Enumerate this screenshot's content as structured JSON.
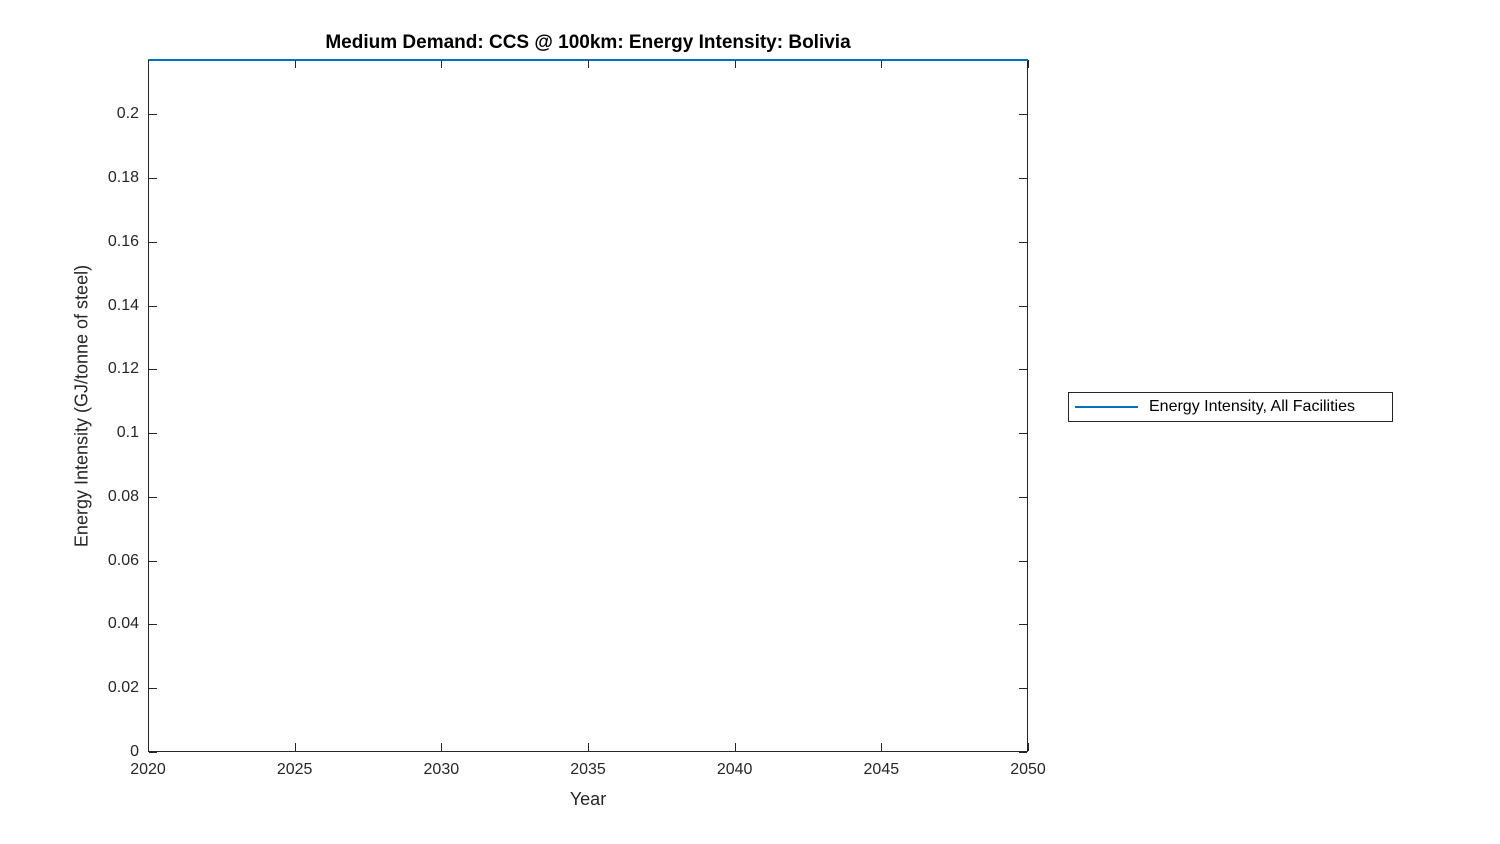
{
  "chart_data": {
    "type": "line",
    "title": "Medium Demand: CCS @ 100km: Energy Intensity: Bolivia",
    "xlabel": "Year",
    "ylabel": "Energy Intensity (GJ/tonne of steel)",
    "xlim": [
      2020,
      2050
    ],
    "ylim": [
      0,
      0.2173
    ],
    "xticks": [
      2020,
      2025,
      2030,
      2035,
      2040,
      2045,
      2050
    ],
    "yticks": [
      0,
      0.02,
      0.04,
      0.06,
      0.08,
      0.1,
      0.12,
      0.14,
      0.16,
      0.18,
      0.2
    ],
    "grid": false,
    "tick_direction": "in",
    "box": true,
    "legend": {
      "position": "outside-right",
      "border": true,
      "entries": [
        {
          "label": "Energy Intensity, All Facilities",
          "color": "#0072BD"
        }
      ]
    },
    "series": [
      {
        "name": "Energy Intensity, All Facilities",
        "color": "#0072BD",
        "x": [
          2020,
          2050
        ],
        "y": [
          0.2173,
          0.2173
        ],
        "note": "flat line coinciding with top axis boundary"
      }
    ]
  },
  "colors": {
    "axis": "#262626",
    "series_blue": "#0072BD",
    "background": "#ffffff"
  }
}
